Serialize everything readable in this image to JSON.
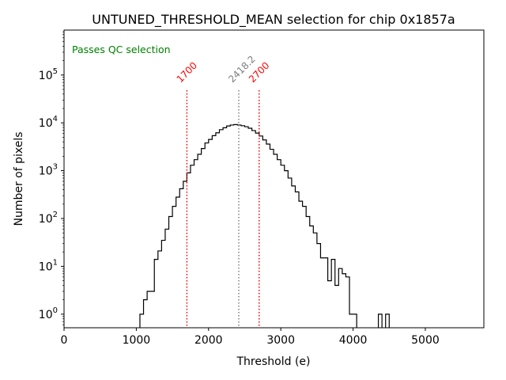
{
  "chart_data": {
    "type": "histogram",
    "title": "UNTUNED_THRESHOLD_MEAN selection for chip 0x1857a",
    "xlabel": "Threshold (e)",
    "ylabel": "Number of pixels",
    "xscale": "linear",
    "yscale": "log",
    "xlim": [
      0,
      5810
    ],
    "ylim": [
      0.52,
      870000
    ],
    "xticks": [
      0,
      1000,
      2000,
      3000,
      4000,
      5000
    ],
    "xtick_labels": [
      "0",
      "1000",
      "2000",
      "3000",
      "4000",
      "5000"
    ],
    "yticks": [
      1,
      10,
      100,
      1000,
      10000,
      100000
    ],
    "ytick_labels": [
      "10^0",
      "10^1",
      "10^2",
      "10^3",
      "10^4",
      "10^5"
    ],
    "grid": false,
    "annotation": {
      "text": "Passes QC selection",
      "color": "#008000",
      "placement": "top-left"
    },
    "bin_width": 50,
    "bins": {
      "start": [
        1050,
        1100,
        1150,
        1200,
        1250,
        1300,
        1350,
        1400,
        1450,
        1500,
        1550,
        1600,
        1650,
        1700,
        1750,
        1800,
        1850,
        1900,
        1950,
        2000,
        2050,
        2100,
        2150,
        2200,
        2250,
        2300,
        2350,
        2400,
        2450,
        2500,
        2550,
        2600,
        2650,
        2700,
        2750,
        2800,
        2850,
        2900,
        2950,
        3000,
        3050,
        3100,
        3150,
        3200,
        3250,
        3300,
        3350,
        3400,
        3450,
        3500,
        3550,
        3600,
        3650,
        3700,
        3750,
        3800,
        3850,
        3900,
        3950,
        4000,
        4350,
        4450
      ],
      "count": [
        1,
        2,
        3,
        3,
        14,
        21,
        35,
        60,
        110,
        180,
        280,
        420,
        600,
        900,
        1300,
        1700,
        2200,
        2900,
        3800,
        4500,
        5400,
        6200,
        7200,
        7900,
        8600,
        9000,
        9200,
        9000,
        8700,
        8300,
        7700,
        6900,
        6100,
        5300,
        4400,
        3600,
        2800,
        2200,
        1700,
        1300,
        1000,
        700,
        480,
        360,
        230,
        180,
        110,
        70,
        50,
        30,
        15,
        15,
        5,
        14,
        4,
        9,
        7,
        6,
        1,
        1,
        1,
        1
      ]
    },
    "vlines": [
      {
        "value": 1700,
        "label": "1700",
        "color": "#ff0000",
        "style": "dotted"
      },
      {
        "value": 2418.2,
        "label": "2418.2",
        "color": "#808080",
        "style": "dotted"
      },
      {
        "value": 2700,
        "label": "2700",
        "color": "#ff0000",
        "style": "dotted"
      }
    ]
  }
}
